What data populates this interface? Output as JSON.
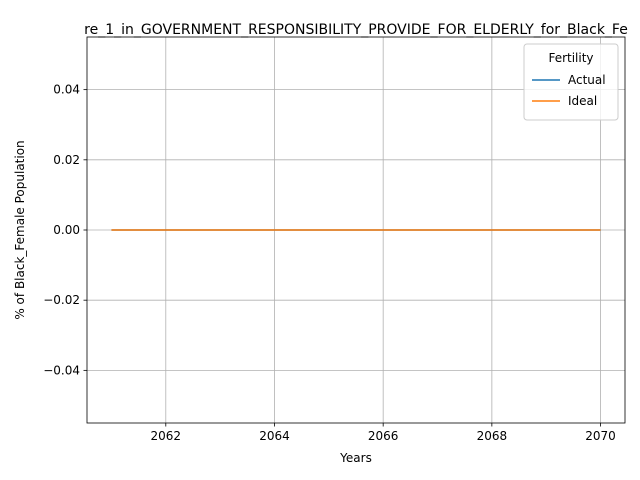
{
  "chart_data": {
    "type": "line",
    "title": "re_1_in_GOVERNMENT_RESPONSIBILITY_PROVIDE_FOR_ELDERLY_for_Black_Fe",
    "xlabel": "Years",
    "ylabel": "% of Black_Female Population",
    "xlim": [
      2060.55,
      2070.45
    ],
    "ylim": [
      -0.055,
      0.055
    ],
    "x_ticks": [
      2062,
      2064,
      2066,
      2068,
      2070
    ],
    "y_ticks": [
      0.04,
      0.02,
      0.0,
      -0.02,
      -0.04
    ],
    "y_tick_labels": [
      "0.04",
      "0.02",
      "0.00",
      "−0.02",
      "−0.04"
    ],
    "grid": true,
    "legend": {
      "title": "Fertility",
      "placement": "top-right"
    },
    "x": [
      2061,
      2062,
      2063,
      2064,
      2065,
      2066,
      2067,
      2068,
      2069,
      2070
    ],
    "series": [
      {
        "name": "Actual",
        "color": "#1f77b4",
        "values": [
          0,
          0,
          0,
          0,
          0,
          0,
          0,
          0,
          0,
          0
        ]
      },
      {
        "name": "Ideal",
        "color": "#ff7f0e",
        "values": [
          0,
          0,
          0,
          0,
          0,
          0,
          0,
          0,
          0,
          0
        ]
      }
    ]
  }
}
